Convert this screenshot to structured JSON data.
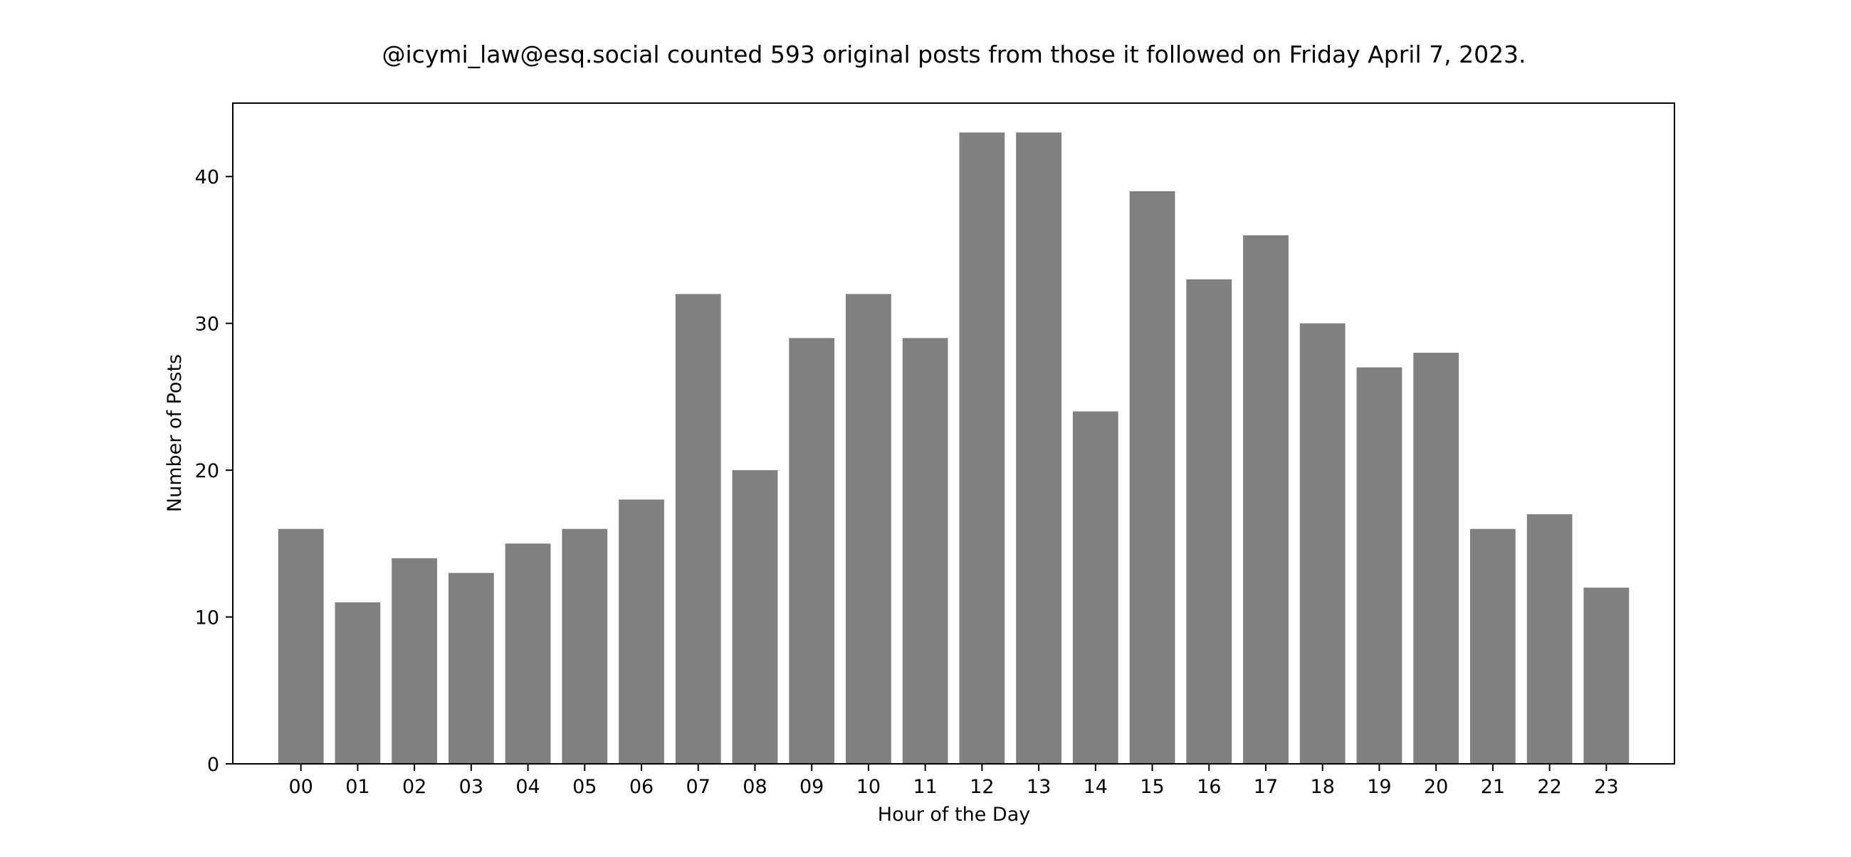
{
  "chart_data": {
    "type": "bar",
    "title": "@icymi_law@esq.social counted 593 original posts from those it followed on Friday April 7, 2023.",
    "xlabel": "Hour of the Day",
    "ylabel": "Number of Posts",
    "categories": [
      "00",
      "01",
      "02",
      "03",
      "04",
      "05",
      "06",
      "07",
      "08",
      "09",
      "10",
      "11",
      "12",
      "13",
      "14",
      "15",
      "16",
      "17",
      "18",
      "19",
      "20",
      "21",
      "22",
      "23"
    ],
    "values": [
      16,
      11,
      14,
      13,
      15,
      16,
      18,
      32,
      20,
      29,
      32,
      29,
      43,
      43,
      24,
      39,
      33,
      36,
      30,
      27,
      28,
      16,
      17,
      12
    ],
    "ylim": [
      0,
      45
    ],
    "yticks": [
      0,
      10,
      20,
      30,
      40
    ],
    "grid": false,
    "legend": "none",
    "bar_color": "#808080"
  }
}
